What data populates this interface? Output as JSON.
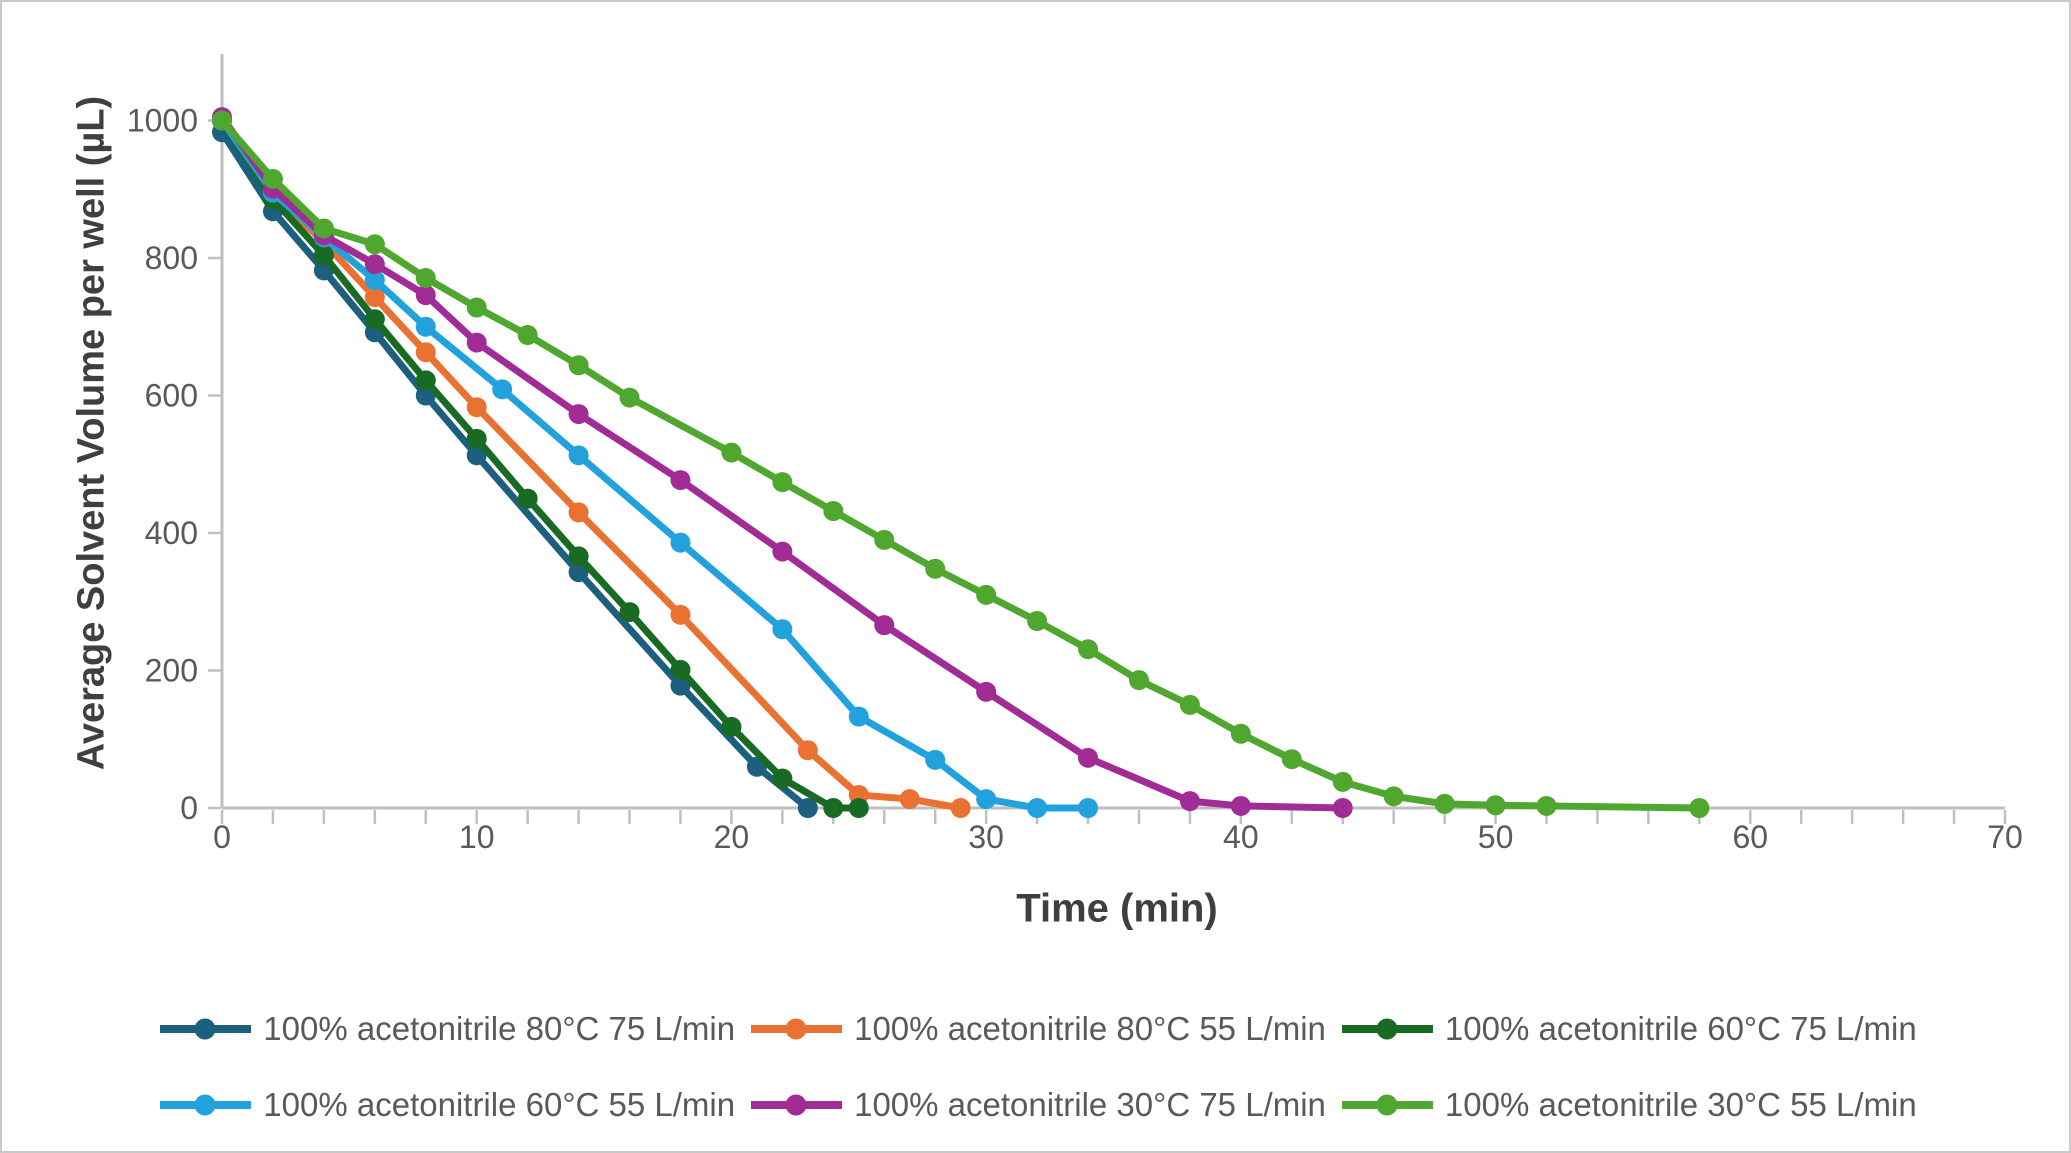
{
  "chart": {
    "x_axis_title": "Time (min)",
    "y_axis_title": "Average Solvent Volume per well (µL)"
  },
  "chart_data": {
    "type": "line",
    "title": "",
    "xlabel": "Time (min)",
    "ylabel": "Average Solvent Volume per well (µL)",
    "xlim": [
      0,
      70
    ],
    "ylim": [
      0,
      1000
    ],
    "x_major_ticks": [
      0,
      10,
      20,
      30,
      40,
      50,
      60,
      70
    ],
    "x_minor_tick_step": 2,
    "y_ticks": [
      0,
      200,
      400,
      600,
      800,
      1000
    ],
    "grid": false,
    "legend_position": "bottom",
    "axis_color": "#bfbfbf",
    "tick_label_color": "#595959",
    "series": [
      {
        "name": "100% acetonitrile 80°C 75 L/min",
        "color": "#1c5f7e",
        "points": [
          [
            0,
            983
          ],
          [
            2,
            868
          ],
          [
            4,
            782
          ],
          [
            6,
            692
          ],
          [
            8,
            600
          ],
          [
            10,
            513
          ],
          [
            14,
            343
          ],
          [
            18,
            178
          ],
          [
            21,
            60
          ],
          [
            23,
            0
          ]
        ]
      },
      {
        "name": "100% acetonitrile 80°C 55 L/min",
        "color": "#e97132",
        "points": [
          [
            0,
            1000
          ],
          [
            2,
            893
          ],
          [
            4,
            823
          ],
          [
            6,
            743
          ],
          [
            8,
            663
          ],
          [
            10,
            583
          ],
          [
            14,
            430
          ],
          [
            18,
            281
          ],
          [
            23,
            84
          ],
          [
            25,
            19
          ],
          [
            27,
            13
          ],
          [
            29,
            0
          ]
        ]
      },
      {
        "name": "100% acetonitrile 60°C 75 L/min",
        "color": "#196b24",
        "points": [
          [
            0,
            1000
          ],
          [
            2,
            886
          ],
          [
            4,
            804
          ],
          [
            6,
            711
          ],
          [
            8,
            622
          ],
          [
            10,
            537
          ],
          [
            12,
            450
          ],
          [
            14,
            366
          ],
          [
            16,
            285
          ],
          [
            18,
            201
          ],
          [
            20,
            118
          ],
          [
            22,
            43
          ],
          [
            24,
            0
          ],
          [
            25,
            0
          ]
        ]
      },
      {
        "name": "100% acetonitrile 60°C 55 L/min",
        "color": "#22a2dc",
        "points": [
          [
            0,
            1000
          ],
          [
            2,
            895
          ],
          [
            4,
            830
          ],
          [
            6,
            768
          ],
          [
            8,
            700
          ],
          [
            11,
            609
          ],
          [
            14,
            513
          ],
          [
            18,
            386
          ],
          [
            22,
            260
          ],
          [
            25,
            133
          ],
          [
            28,
            70
          ],
          [
            30,
            13
          ],
          [
            32,
            0
          ],
          [
            34,
            0
          ]
        ]
      },
      {
        "name": "100% acetonitrile 30°C 75 L/min",
        "color": "#a22c96",
        "points": [
          [
            0,
            1005
          ],
          [
            2,
            901
          ],
          [
            4,
            833
          ],
          [
            6,
            791
          ],
          [
            8,
            746
          ],
          [
            10,
            677
          ],
          [
            14,
            573
          ],
          [
            18,
            477
          ],
          [
            22,
            373
          ],
          [
            26,
            266
          ],
          [
            30,
            169
          ],
          [
            34,
            73
          ],
          [
            38,
            10
          ],
          [
            40,
            3
          ],
          [
            44,
            0
          ]
        ]
      },
      {
        "name": "100% acetonitrile 30°C 55 L/min",
        "color": "#4fa72f",
        "points": [
          [
            0,
            1000
          ],
          [
            2,
            915
          ],
          [
            4,
            843
          ],
          [
            6,
            820
          ],
          [
            8,
            771
          ],
          [
            10,
            728
          ],
          [
            12,
            688
          ],
          [
            14,
            644
          ],
          [
            16,
            597
          ],
          [
            20,
            517
          ],
          [
            22,
            474
          ],
          [
            24,
            432
          ],
          [
            26,
            390
          ],
          [
            28,
            348
          ],
          [
            30,
            310
          ],
          [
            32,
            272
          ],
          [
            34,
            231
          ],
          [
            36,
            186
          ],
          [
            38,
            150
          ],
          [
            40,
            108
          ],
          [
            42,
            71
          ],
          [
            44,
            38
          ],
          [
            46,
            17
          ],
          [
            48,
            6
          ],
          [
            50,
            4
          ],
          [
            52,
            3
          ],
          [
            58,
            0
          ]
        ]
      }
    ]
  }
}
